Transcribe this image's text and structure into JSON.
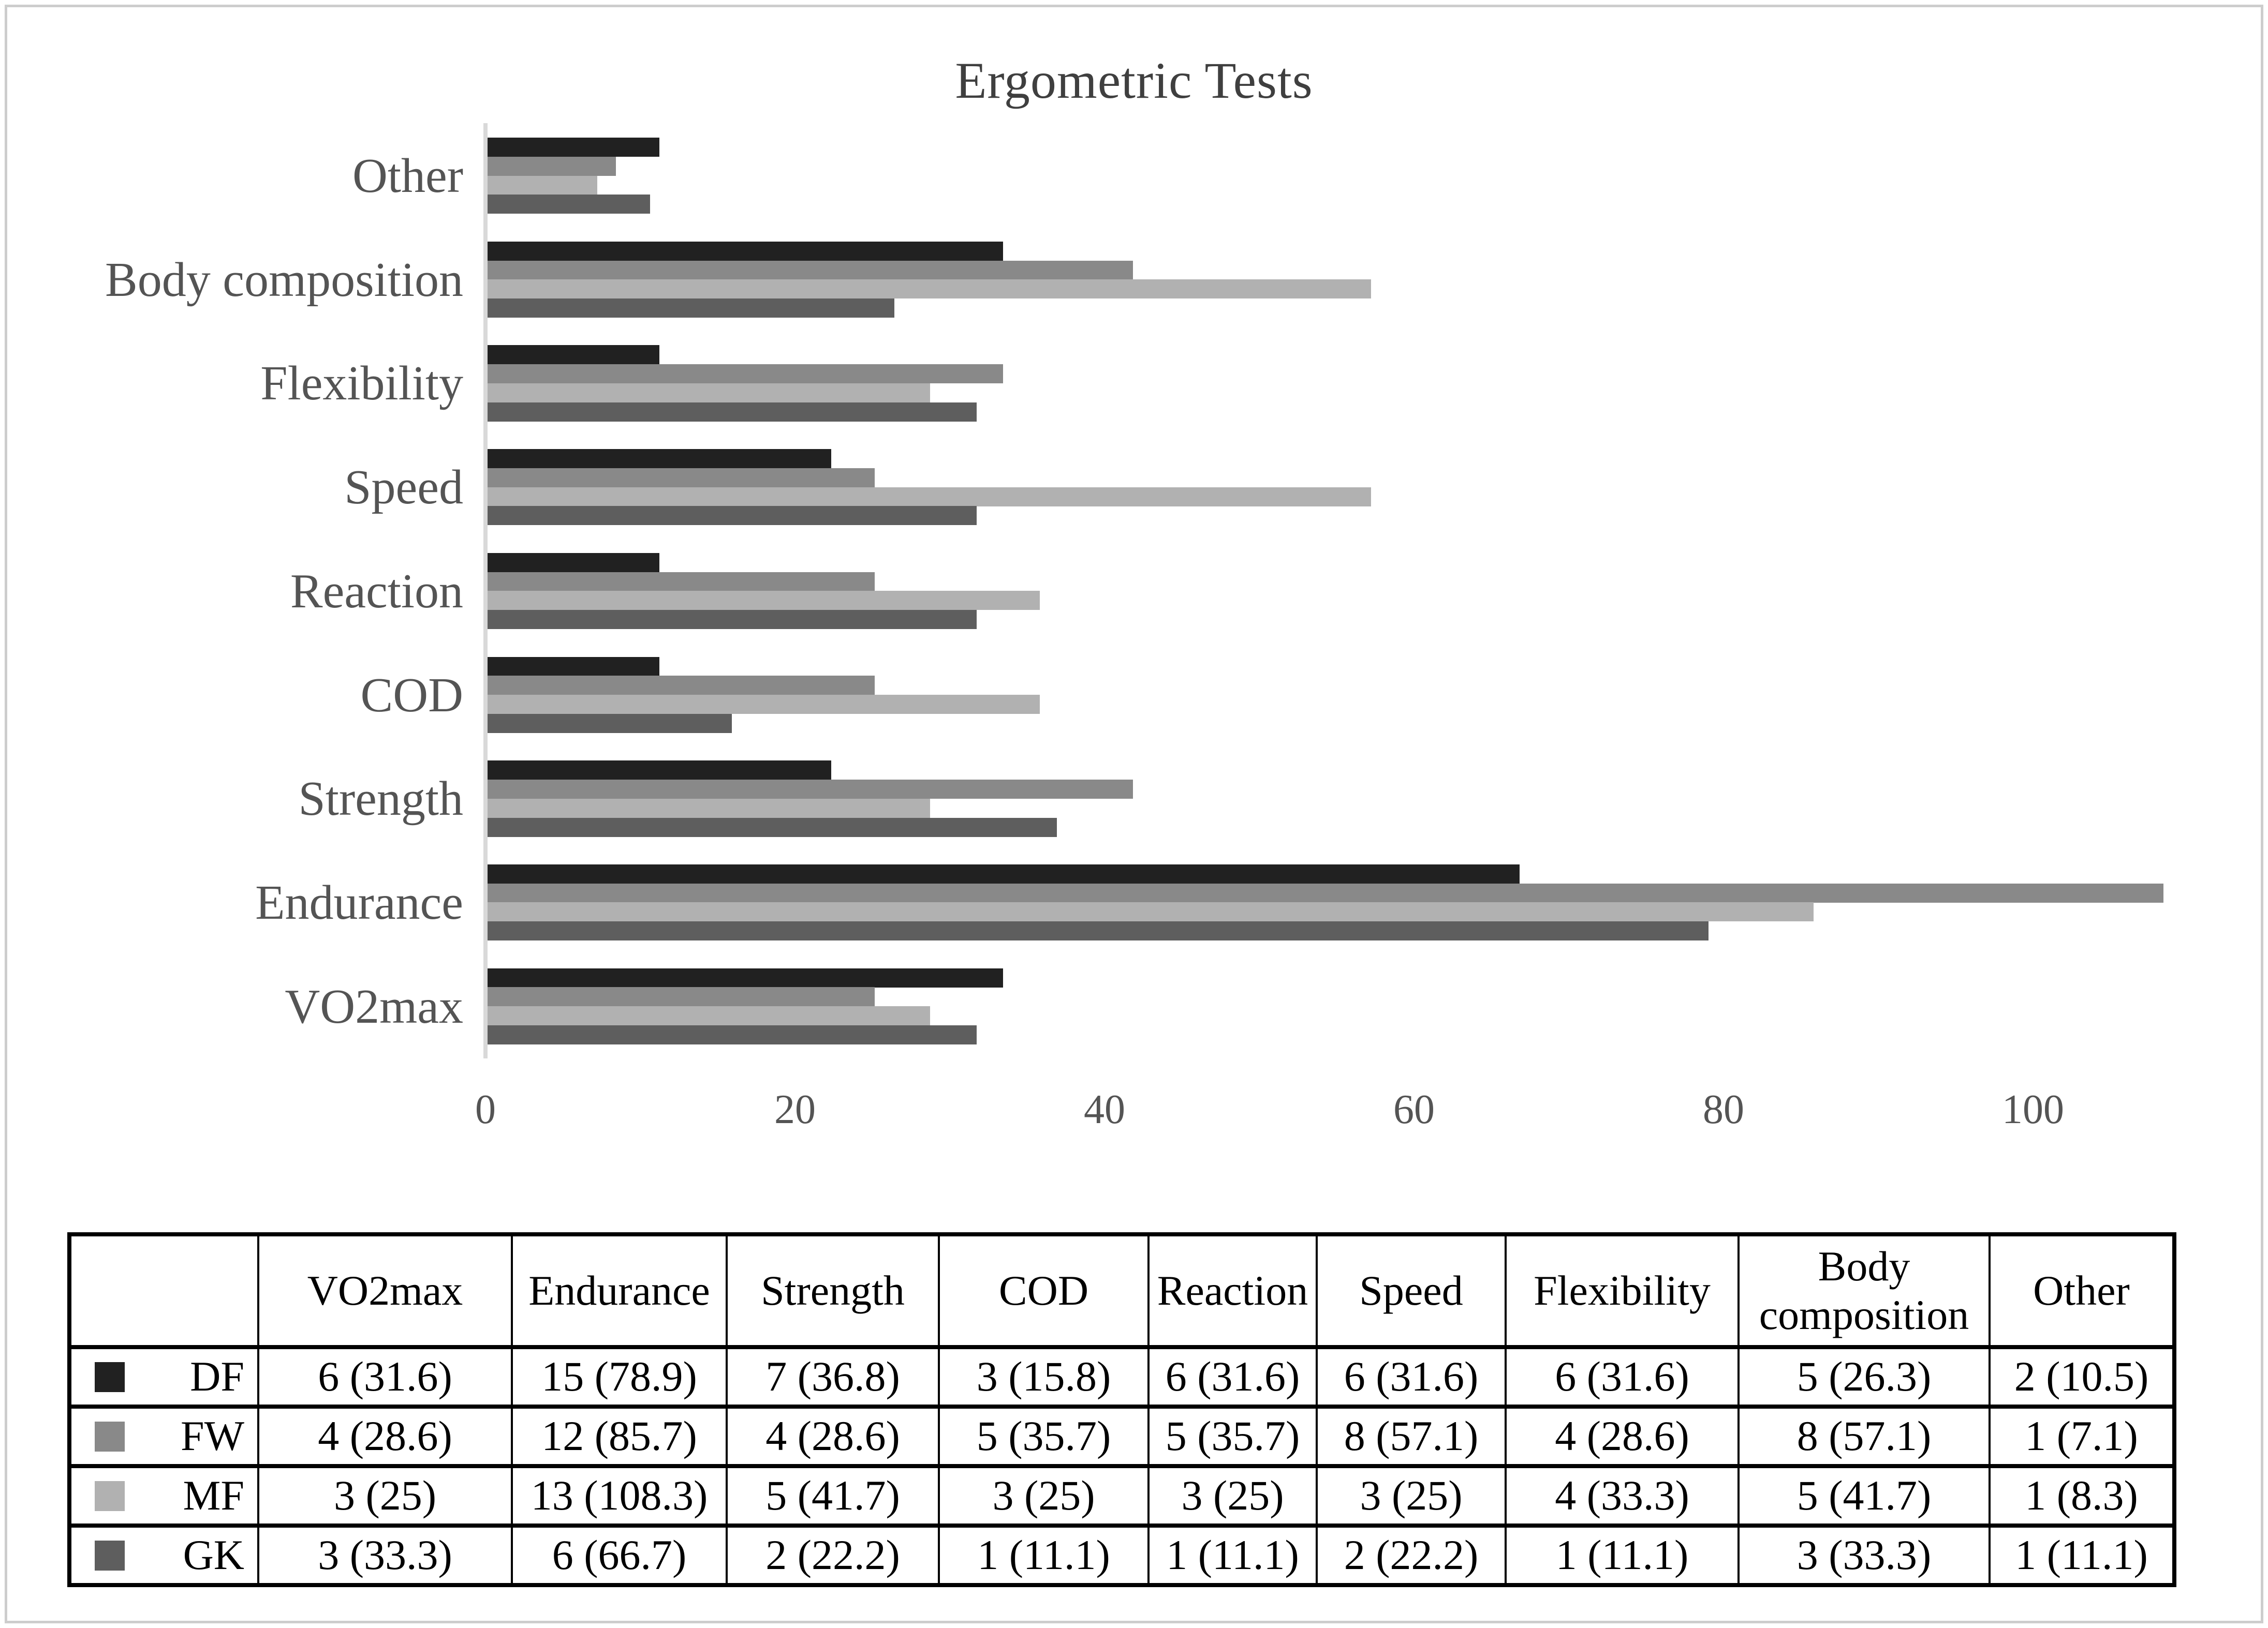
{
  "chart_data": {
    "type": "bar",
    "orientation": "horizontal-grouped",
    "title": "Ergometric Tests",
    "categories_top_to_bottom": [
      "Other",
      "Body composition",
      "Flexibility",
      "Speed",
      "Reaction",
      "COD",
      "Strength",
      "Endurance",
      "VO2max"
    ],
    "x_axis": {
      "ticks": [
        0,
        20,
        40,
        60,
        80,
        100
      ],
      "range": [
        0,
        113
      ],
      "gridlines": false
    },
    "legend_position": "none",
    "bar_order_note": "bars listed top-to-bottom within each category group, values are percentages",
    "series": [
      {
        "name": "GK",
        "color": "#212121",
        "values": [
          11.1,
          33.3,
          11.1,
          22.2,
          11.1,
          11.1,
          22.2,
          66.7,
          33.3
        ]
      },
      {
        "name": "MF",
        "color": "#898989",
        "values": [
          8.3,
          41.7,
          33.3,
          25,
          25,
          25,
          41.7,
          108.3,
          25
        ]
      },
      {
        "name": "FW",
        "color": "#b1b1b1",
        "values": [
          7.1,
          57.1,
          28.6,
          57.1,
          35.7,
          35.7,
          28.6,
          85.7,
          28.6
        ]
      },
      {
        "name": "DF",
        "color": "#5e5e5e",
        "values": [
          10.5,
          26.3,
          31.6,
          31.6,
          31.6,
          15.8,
          36.8,
          78.9,
          31.6
        ]
      }
    ]
  },
  "table": {
    "columns": [
      "VO2max",
      "Endurance",
      "Strength",
      "COD",
      "Reaction",
      "Speed",
      "Flexibility",
      "Body composition",
      "Other"
    ],
    "rows": [
      {
        "label": "DF",
        "swatch": "#212121",
        "cells": [
          "6 (31.6)",
          "15 (78.9)",
          "7 (36.8)",
          "3 (15.8)",
          "6 (31.6)",
          "6 (31.6)",
          "6 (31.6)",
          "5 (26.3)",
          "2 (10.5)"
        ]
      },
      {
        "label": "FW",
        "swatch": "#898989",
        "cells": [
          "4 (28.6)",
          "12 (85.7)",
          "4 (28.6)",
          "5 (35.7)",
          "5 (35.7)",
          "8 (57.1)",
          "4 (28.6)",
          "8 (57.1)",
          "1 (7.1)"
        ]
      },
      {
        "label": "MF",
        "swatch": "#b1b1b1",
        "cells": [
          "3 (25)",
          "13 (108.3)",
          "5 (41.7)",
          "3 (25)",
          "3 (25)",
          "3 (25)",
          "4 (33.3)",
          "5 (41.7)",
          "1 (8.3)"
        ]
      },
      {
        "label": "GK",
        "swatch": "#5e5e5e",
        "cells": [
          "3 (33.3)",
          "6 (66.7)",
          "2 (22.2)",
          "1 (11.1)",
          "1 (11.1)",
          "2 (22.2)",
          "1 (11.1)",
          "3 (33.3)",
          "1 (11.1)"
        ]
      }
    ]
  }
}
